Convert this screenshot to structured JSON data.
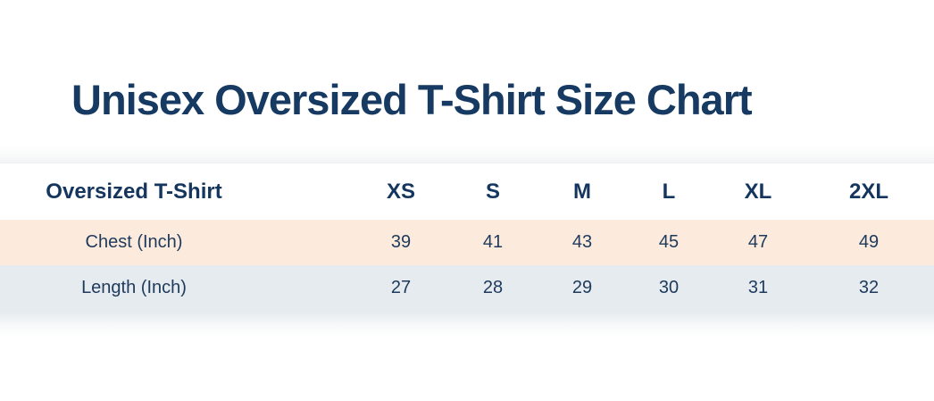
{
  "page": {
    "title": "Unisex Oversized T-Shirt Size Chart"
  },
  "size_chart": {
    "header": {
      "label": "Oversized T-Shirt",
      "sizes": [
        "XS",
        "S",
        "M",
        "L",
        "XL",
        "2XL"
      ]
    },
    "rows": [
      {
        "label": "Chest (Inch)",
        "values": [
          "39",
          "41",
          "43",
          "45",
          "47",
          "49"
        ]
      },
      {
        "label": "Length (Inch)",
        "values": [
          "27",
          "28",
          "29",
          "30",
          "31",
          "32"
        ]
      }
    ]
  },
  "chart_data": {
    "type": "table",
    "title": "Unisex Oversized T-Shirt Size Chart",
    "columns": [
      "Oversized T-Shirt",
      "XS",
      "S",
      "M",
      "L",
      "XL",
      "2XL"
    ],
    "rows": [
      [
        "Chest (Inch)",
        39,
        41,
        43,
        45,
        47,
        49
      ],
      [
        "Length (Inch)",
        27,
        28,
        29,
        30,
        31,
        32
      ]
    ]
  },
  "colors": {
    "title_text": "#173a62",
    "header_text": "#14365e",
    "cell_text": "#1d3a5c",
    "chest_row_bg": "#fcebdc",
    "length_row_bg": "#e6ebef",
    "page_bg": "#ffffff"
  }
}
